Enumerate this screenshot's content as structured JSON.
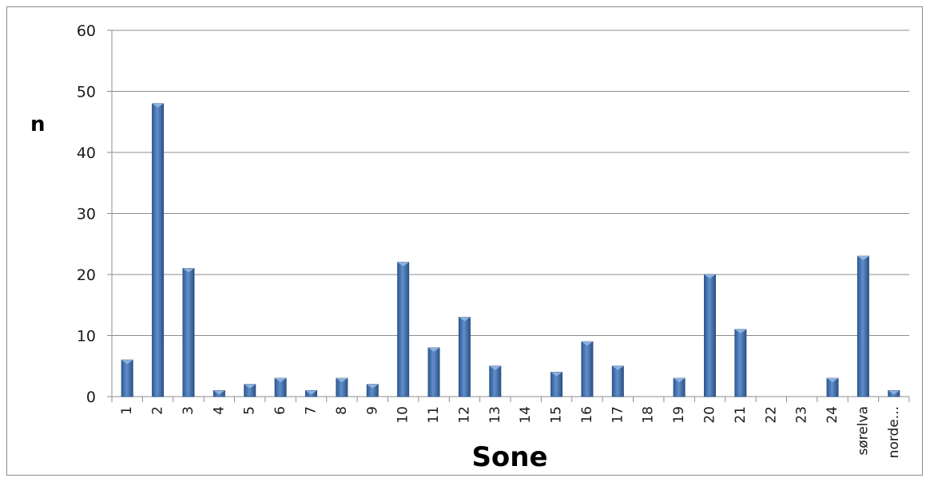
{
  "chart_data": {
    "type": "bar",
    "title": "",
    "xlabel": "Sone",
    "ylabel": "n",
    "ylim": [
      0,
      60
    ],
    "yticks": [
      0,
      10,
      20,
      30,
      40,
      50,
      60
    ],
    "grid": true,
    "legend": "none",
    "categories": [
      "1",
      "2",
      "3",
      "4",
      "5",
      "6",
      "7",
      "8",
      "9",
      "10",
      "11",
      "12",
      "13",
      "14",
      "15",
      "16",
      "17",
      "18",
      "19",
      "20",
      "21",
      "22",
      "23",
      "24",
      "sørelva",
      "norde..."
    ],
    "values": [
      6,
      48,
      21,
      1,
      2,
      3,
      1,
      3,
      2,
      22,
      8,
      13,
      5,
      0,
      4,
      9,
      5,
      0,
      3,
      20,
      11,
      0,
      0,
      3,
      23,
      1
    ],
    "colors": {
      "bar": "#4f81bd",
      "bar_dark": "#2c5286",
      "bar_light": "#8fb2dd",
      "grid": "#8c8c8c"
    }
  }
}
